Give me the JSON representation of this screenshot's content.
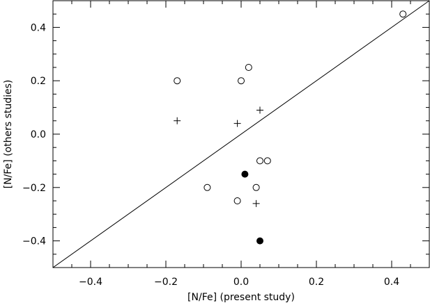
{
  "chart_data": {
    "type": "scatter",
    "xlabel": "[N/Fe] (present study)",
    "ylabel": "[N/Fe] (others studies)",
    "xlim": [
      -0.5,
      0.5
    ],
    "ylim": [
      -0.5,
      0.5
    ],
    "x_ticks": [
      -0.4,
      -0.2,
      0.0,
      0.2,
      0.4
    ],
    "x_tick_labels": [
      "−0.4",
      "−0.2",
      "0.0",
      "0.2",
      "0.4"
    ],
    "y_ticks": [
      -0.4,
      -0.2,
      0.0,
      0.2,
      0.4
    ],
    "y_tick_labels": [
      "−0.4",
      "−0.2",
      "0.0",
      "0.2",
      "0.4"
    ],
    "grid": false,
    "reference_line": {
      "type": "identity",
      "x": [
        -0.5,
        0.5
      ],
      "y": [
        -0.5,
        0.5
      ]
    },
    "series": [
      {
        "marker": "open-circle",
        "points": [
          {
            "x": 0.43,
            "y": 0.45
          },
          {
            "x": 0.02,
            "y": 0.25
          },
          {
            "x": -0.17,
            "y": 0.2
          },
          {
            "x": 0.0,
            "y": 0.2
          },
          {
            "x": 0.05,
            "y": -0.1
          },
          {
            "x": 0.07,
            "y": -0.1
          },
          {
            "x": -0.09,
            "y": -0.2
          },
          {
            "x": 0.04,
            "y": -0.2
          },
          {
            "x": -0.01,
            "y": -0.25
          }
        ]
      },
      {
        "marker": "plus",
        "points": [
          {
            "x": 0.05,
            "y": 0.09
          },
          {
            "x": -0.17,
            "y": 0.05
          },
          {
            "x": -0.01,
            "y": 0.04
          },
          {
            "x": 0.04,
            "y": -0.26
          }
        ]
      },
      {
        "marker": "filled-circle",
        "points": [
          {
            "x": 0.01,
            "y": -0.15
          },
          {
            "x": 0.05,
            "y": -0.4
          }
        ]
      }
    ]
  }
}
